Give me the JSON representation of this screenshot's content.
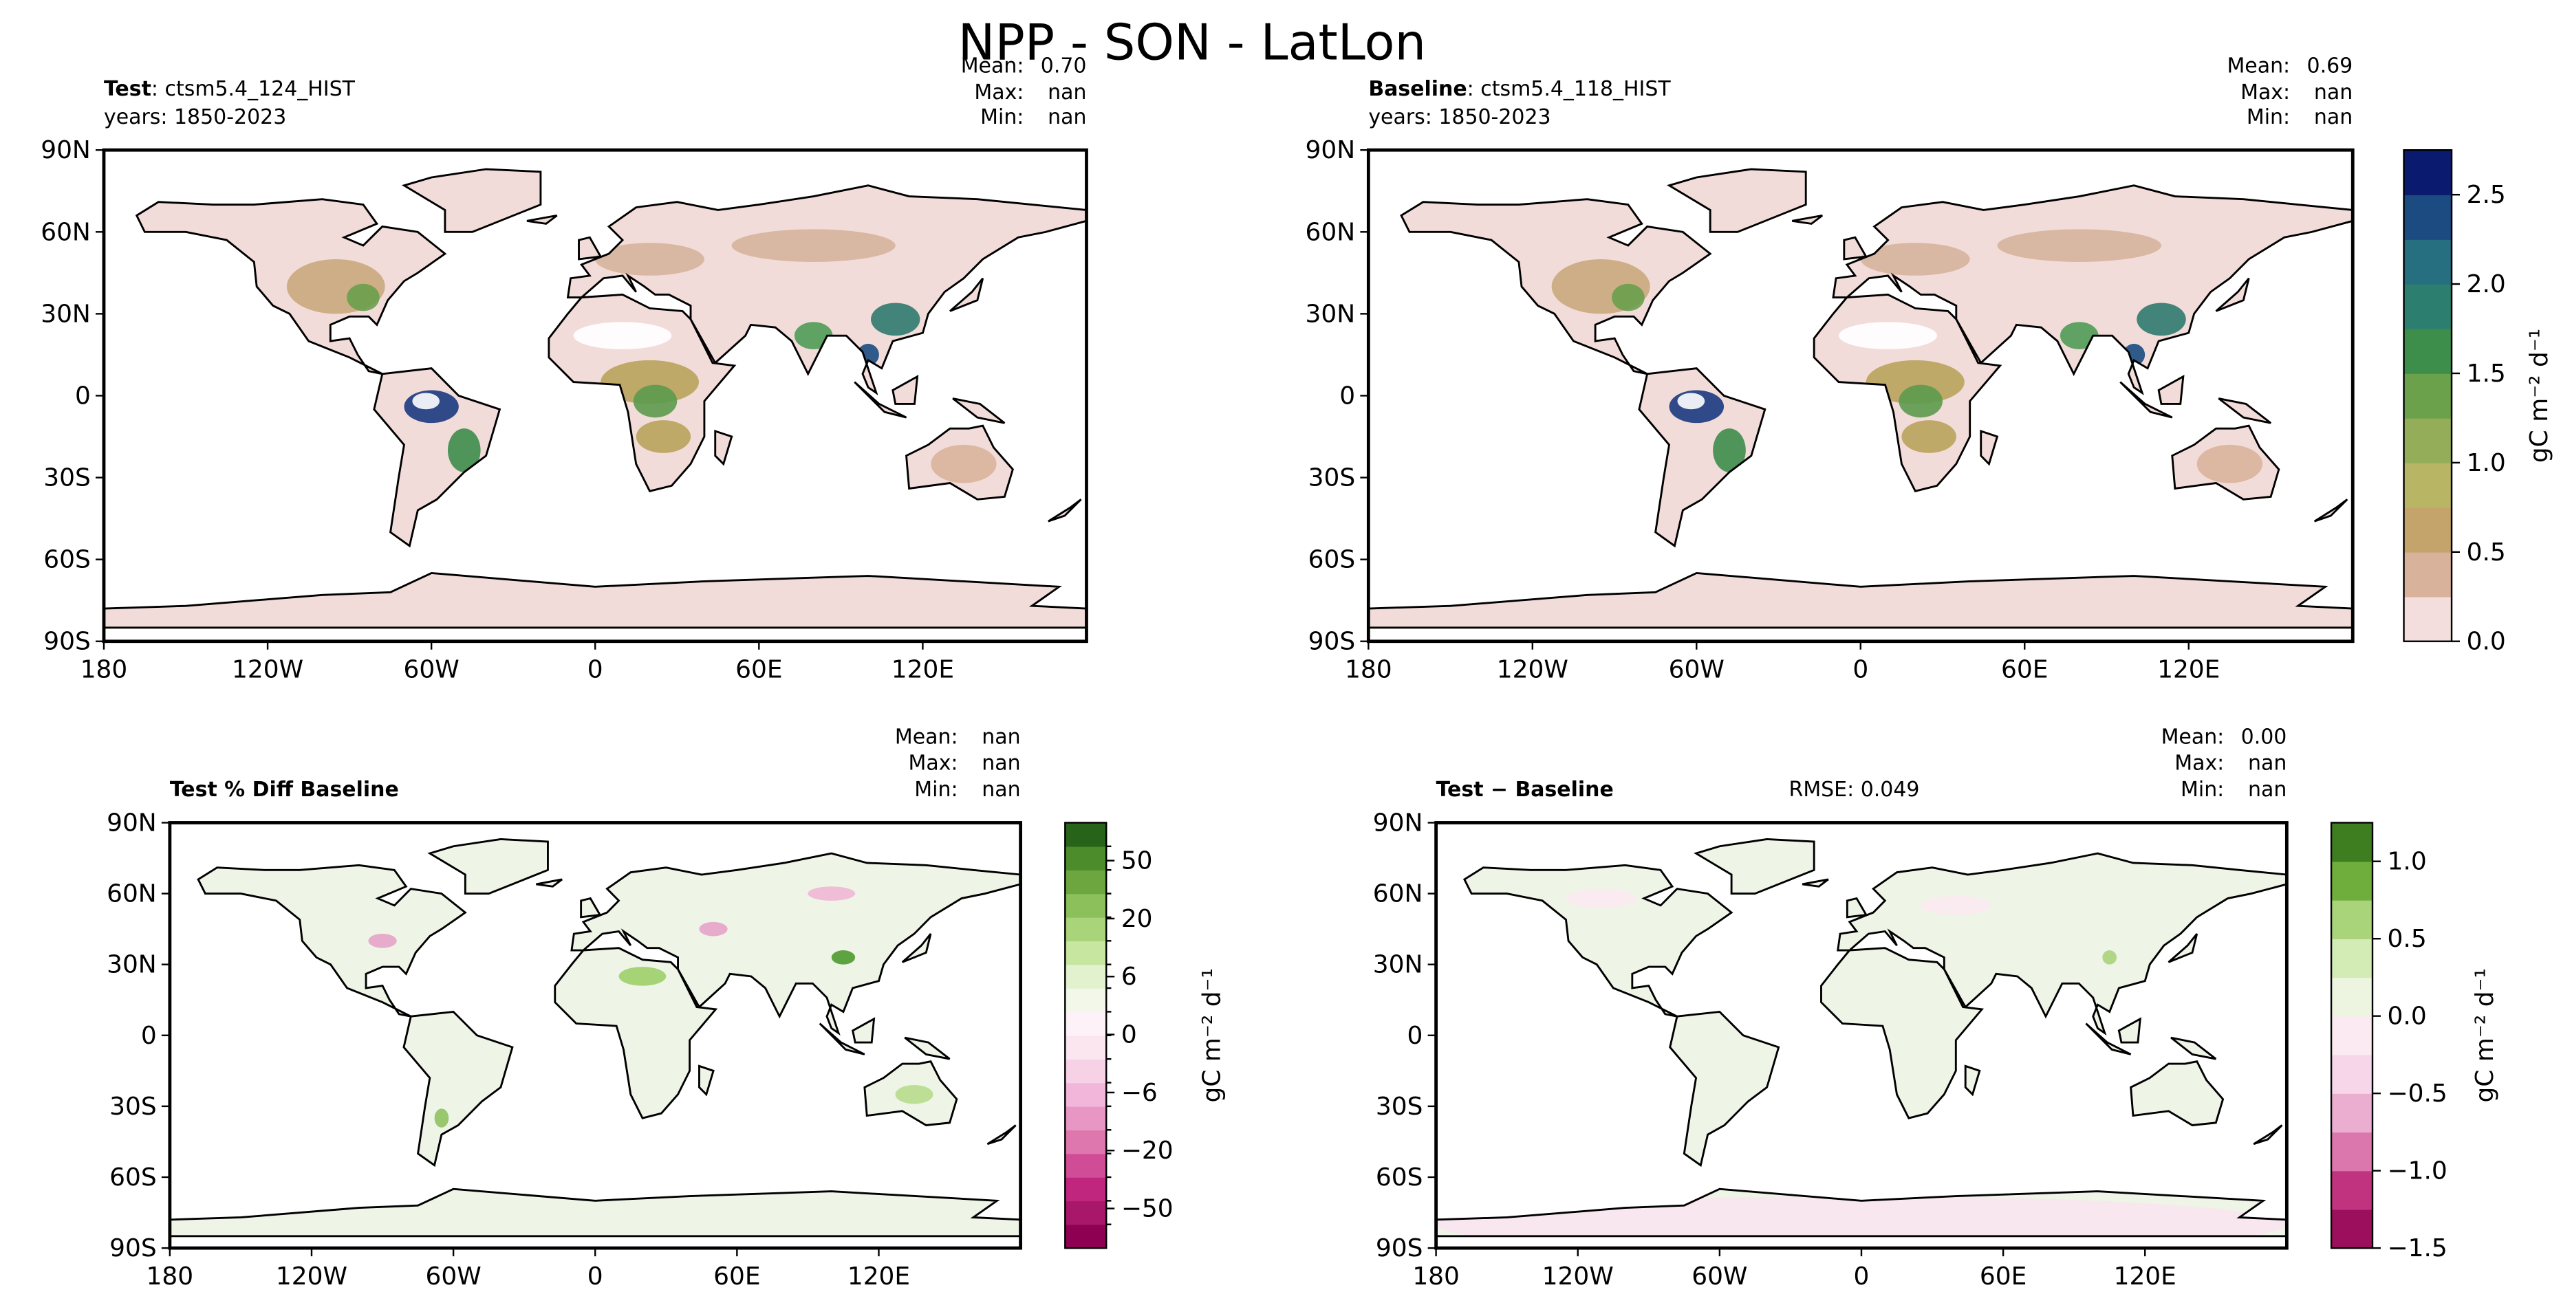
{
  "title": "NPP - SON - LatLon",
  "panels": [
    {
      "header": {
        "bold": "Test",
        "rest": ": ctsm5.4_124_HIST"
      },
      "years": "years: 1850-2023",
      "stats": [
        [
          "Mean:",
          "0.70"
        ],
        [
          "Max:",
          "nan"
        ],
        [
          "Min:",
          "nan"
        ]
      ],
      "xlim": [
        -180,
        180
      ],
      "ylim": [
        -90,
        90
      ],
      "xticks": [
        {
          "value": -180,
          "label": "180"
        },
        {
          "value": -120,
          "label": "120W"
        },
        {
          "value": -60,
          "label": "60W"
        },
        0,
        {
          "value": 60,
          "label": "60E"
        },
        {
          "value": 120,
          "label": "120E"
        }
      ],
      "yticks": [
        {
          "value": 90,
          "label": "90N"
        },
        {
          "value": 60,
          "label": "60N"
        },
        {
          "value": 30,
          "label": "30N"
        },
        0,
        {
          "value": -30,
          "label": "30S"
        },
        {
          "value": -60,
          "label": "60S"
        },
        {
          "value": -90,
          "label": "90S"
        }
      ]
    },
    {
      "header": {
        "bold": "Baseline",
        "rest": ": ctsm5.4_118_HIST"
      },
      "years": "years: 1850-2023",
      "stats": [
        [
          "Mean:",
          "0.69"
        ],
        [
          "Max:",
          "nan"
        ],
        [
          "Min:",
          "nan"
        ]
      ],
      "xlim": [
        -180,
        180
      ],
      "ylim": [
        -90,
        90
      ],
      "xticks": [
        {
          "value": -180,
          "label": "180"
        },
        {
          "value": -120,
          "label": "120W"
        },
        {
          "value": -60,
          "label": "60W"
        },
        0,
        {
          "value": 60,
          "label": "60E"
        },
        {
          "value": 120,
          "label": "120E"
        }
      ],
      "yticks": [
        {
          "value": 90,
          "label": "90N"
        },
        {
          "value": 60,
          "label": "60N"
        },
        {
          "value": 30,
          "label": "30N"
        },
        0,
        {
          "value": -30,
          "label": "30S"
        },
        {
          "value": -60,
          "label": "60S"
        },
        {
          "value": -90,
          "label": "90S"
        }
      ],
      "colorbar": {
        "label": "gC m⁻² d⁻¹",
        "lim": [
          0,
          2.75
        ],
        "ticks": [
          {
            "value": 0,
            "label": "0.0"
          },
          0.5,
          {
            "value": 1,
            "label": "1.0"
          },
          1.5,
          {
            "value": 2,
            "label": "2.0"
          },
          2.5
        ],
        "colors": [
          "#f3dedd",
          "#d9b29b",
          "#c4a46a",
          "#b8b564",
          "#94ad58",
          "#6ba14b",
          "#3d8d4b",
          "#2c7f6e",
          "#256f80",
          "#1b4b80",
          "#0a1a6e"
        ]
      }
    },
    {
      "header": {
        "bold": "Test % Diff Baseline"
      },
      "stats": [
        [
          "Mean:",
          "nan"
        ],
        [
          "Max:",
          "nan"
        ],
        [
          "Min:",
          "nan"
        ]
      ],
      "xlim": [
        -180,
        180
      ],
      "ylim": [
        -90,
        90
      ],
      "xticks": [
        {
          "value": -180,
          "label": "180"
        },
        {
          "value": -120,
          "label": "120W"
        },
        {
          "value": -60,
          "label": "60W"
        },
        0,
        {
          "value": 60,
          "label": "60E"
        },
        {
          "value": 120,
          "label": "120E"
        }
      ],
      "yticks": [
        {
          "value": 90,
          "label": "90N"
        },
        {
          "value": 60,
          "label": "60N"
        },
        {
          "value": 30,
          "label": "30N"
        },
        0,
        {
          "value": -30,
          "label": "30S"
        },
        {
          "value": -60,
          "label": "60S"
        },
        {
          "value": -90,
          "label": "90S"
        }
      ],
      "colorbar": {
        "label": "gC m⁻² d⁻¹",
        "ticks": [
          {
            "value": -50,
            "label": "−50"
          },
          {
            "value": -20,
            "label": "−20"
          },
          {
            "value": -6,
            "label": "−6"
          },
          0,
          6,
          20,
          50
        ],
        "colors": [
          "#8e0152",
          "#a8176a",
          "#c0267e",
          "#d04c97",
          "#de77ae",
          "#e897c4",
          "#f1b6da",
          "#f7d2e7",
          "#fbe6f0",
          "#fdf2f7",
          "#f2f7ea",
          "#e2f2cf",
          "#c7e6a0",
          "#a9d47a",
          "#8bc05a",
          "#6da63e",
          "#4d8c2a",
          "#276419"
        ]
      }
    },
    {
      "header": {
        "bold": "Test − Baseline"
      },
      "rmse": "RMSE: 0.049",
      "stats": [
        [
          "Mean:",
          "0.00"
        ],
        [
          "Max:",
          "nan"
        ],
        [
          "Min:",
          "nan"
        ]
      ],
      "xlim": [
        -180,
        180
      ],
      "ylim": [
        -90,
        90
      ],
      "xticks": [
        {
          "value": -180,
          "label": "180"
        },
        {
          "value": -120,
          "label": "120W"
        },
        {
          "value": -60,
          "label": "60W"
        },
        0,
        {
          "value": 60,
          "label": "60E"
        },
        {
          "value": 120,
          "label": "120E"
        }
      ],
      "yticks": [
        {
          "value": 90,
          "label": "90N"
        },
        {
          "value": 60,
          "label": "60N"
        },
        {
          "value": 30,
          "label": "30N"
        },
        0,
        {
          "value": -30,
          "label": "30S"
        },
        {
          "value": -60,
          "label": "60S"
        },
        {
          "value": -90,
          "label": "90S"
        }
      ],
      "colorbar": {
        "label": "gC m⁻² d⁻¹",
        "lim": [
          -1.5,
          1.25
        ],
        "ticks": [
          {
            "value": -1.5,
            "label": "−1.5"
          },
          {
            "value": -1,
            "label": "−1.0"
          },
          {
            "value": -0.5,
            "label": "−0.5"
          },
          {
            "value": 0,
            "label": "0.0"
          },
          0.5,
          {
            "value": 1,
            "label": "1.0"
          }
        ],
        "colors": [
          "#9b0f5d",
          "#c2337f",
          "#dc77ae",
          "#ecaed0",
          "#f6d6e8",
          "#fbeaf2",
          "#edf5e0",
          "#d3ebb4",
          "#a9d47a",
          "#6fae3c",
          "#3e7d20"
        ]
      }
    }
  ]
}
